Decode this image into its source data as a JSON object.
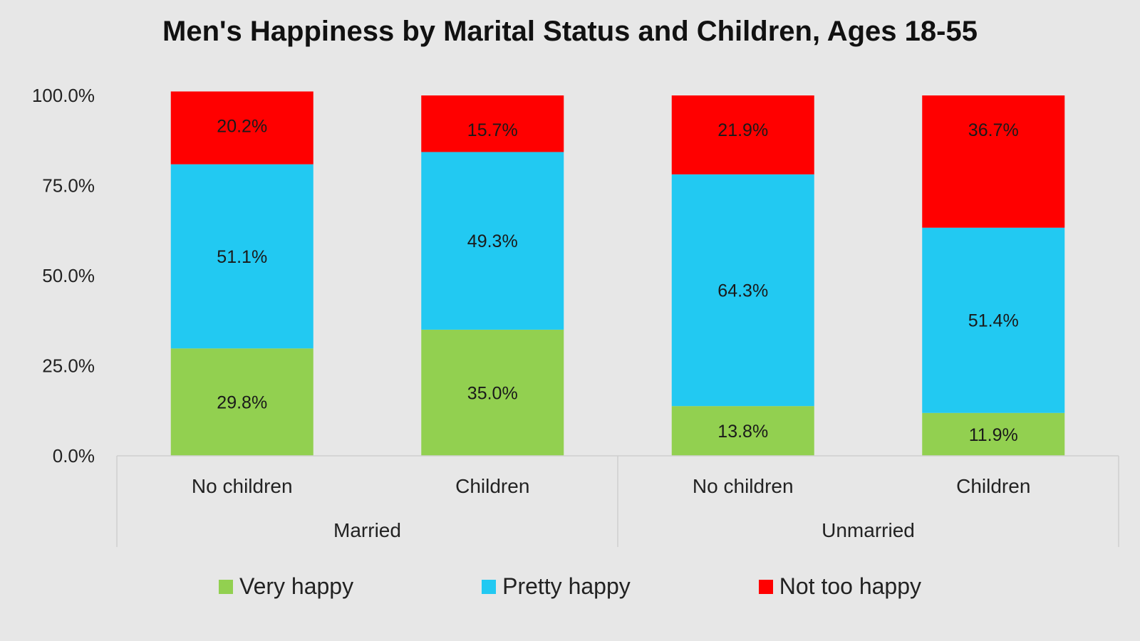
{
  "chart_data": {
    "type": "bar",
    "stacked": true,
    "title": "Men's Happiness by Marital Status and Children, Ages 18-55",
    "categories": [
      "No children",
      "Children",
      "No children",
      "Children"
    ],
    "groups": [
      {
        "label": "Married",
        "categories": [
          0,
          1
        ]
      },
      {
        "label": "Unmarried",
        "categories": [
          2,
          3
        ]
      }
    ],
    "series": [
      {
        "name": "Very happy",
        "color": "#92d050",
        "values": [
          29.8,
          35.0,
          13.8,
          11.9
        ],
        "labels": [
          "29.8%",
          "35.0%",
          "13.8%",
          "11.9%"
        ]
      },
      {
        "name": "Pretty happy",
        "color": "#22c9f2",
        "values": [
          51.1,
          49.3,
          64.3,
          51.4
        ],
        "labels": [
          "51.1%",
          "49.3%",
          "64.3%",
          "51.4%"
        ]
      },
      {
        "name": "Not too happy",
        "color": "#ff0000",
        "values": [
          20.2,
          15.7,
          21.9,
          36.7
        ],
        "labels": [
          "20.2%",
          "15.7%",
          "21.9%",
          "36.7%"
        ]
      }
    ],
    "yticks": [
      0,
      25,
      50,
      75,
      100
    ],
    "ytick_labels": [
      "0.0%",
      "25.0%",
      "50.0%",
      "75.0%",
      "100.0%"
    ],
    "ylim": [
      0,
      100
    ],
    "xlabel": "",
    "ylabel": "",
    "legend_position": "bottom",
    "grid": false
  }
}
